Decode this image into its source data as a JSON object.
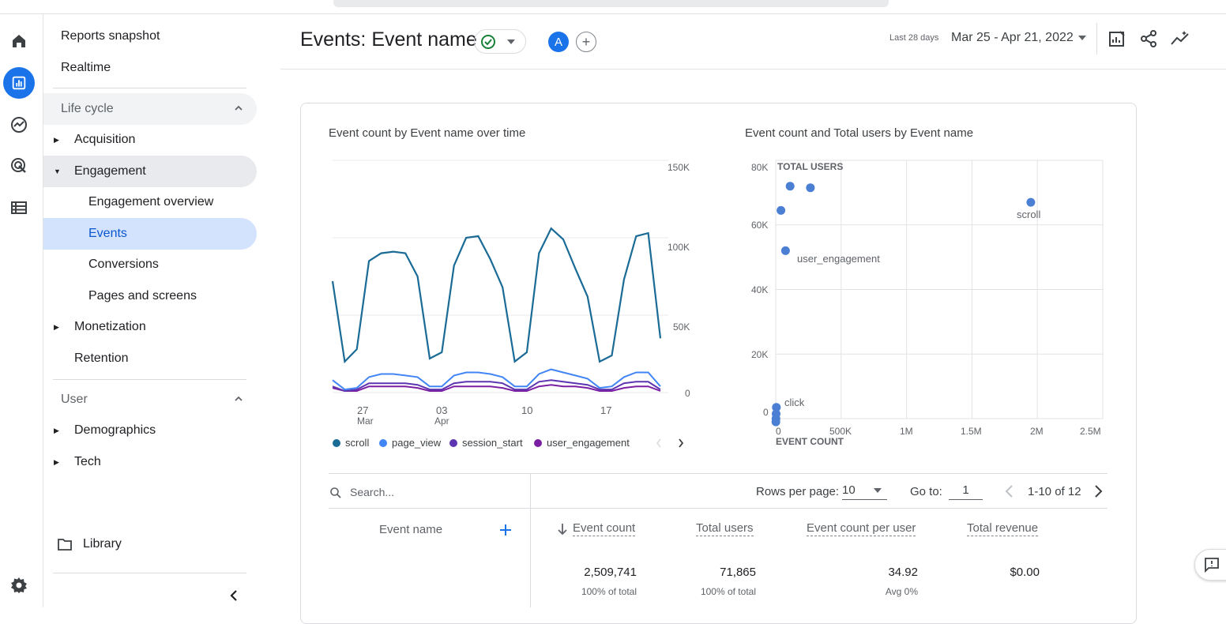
{
  "nav": {
    "reports_snapshot": "Reports snapshot",
    "realtime": "Realtime",
    "lifecycle": "Life cycle",
    "acquisition": "Acquisition",
    "engagement": "Engagement",
    "engagement_overview": "Engagement overview",
    "events": "Events",
    "conversions": "Conversions",
    "pages_and_screens": "Pages and screens",
    "monetization": "Monetization",
    "retention": "Retention",
    "user": "User",
    "demographics": "Demographics",
    "tech": "Tech",
    "library": "Library"
  },
  "header": {
    "title": "Events: Event name",
    "avatar_letter": "A",
    "date_label": "Last 28 days",
    "date_range": "Mar 25 - Apr 21, 2022"
  },
  "line_chart": {
    "title": "Event count by Event name over time",
    "y_ticks": [
      "150K",
      "100K",
      "50K",
      "0"
    ],
    "x_ticks": [
      {
        "day": "27",
        "month": "Mar"
      },
      {
        "day": "03",
        "month": "Apr"
      },
      {
        "day": "10",
        "month": ""
      },
      {
        "day": "17",
        "month": ""
      }
    ],
    "legend": [
      "scroll",
      "page_view",
      "session_start",
      "user_engagement"
    ]
  },
  "scatter_chart": {
    "title": "Event count and Total users by Event name",
    "y_axis_label": "TOTAL USERS",
    "x_axis_label": "EVENT COUNT",
    "y_ticks": [
      "80K",
      "60K",
      "40K",
      "20K",
      "0"
    ],
    "x_ticks": [
      "0",
      "500K",
      "1M",
      "1.5M",
      "2M",
      "2.5M"
    ],
    "labels": [
      "scroll",
      "user_engagement",
      "click"
    ]
  },
  "chart_data": [
    {
      "type": "line",
      "title": "Event count by Event name over time",
      "x": [
        "Mar 25",
        "Mar 26",
        "Mar 27",
        "Mar 28",
        "Mar 29",
        "Mar 30",
        "Mar 31",
        "Apr 1",
        "Apr 2",
        "Apr 3",
        "Apr 4",
        "Apr 5",
        "Apr 6",
        "Apr 7",
        "Apr 8",
        "Apr 9",
        "Apr 10",
        "Apr 11",
        "Apr 12",
        "Apr 13",
        "Apr 14",
        "Apr 15",
        "Apr 16",
        "Apr 17",
        "Apr 18",
        "Apr 19",
        "Apr 20",
        "Apr 21"
      ],
      "ylim": [
        0,
        150000
      ],
      "series": [
        {
          "name": "scroll",
          "color": "#1a6b96",
          "values": [
            72000,
            20000,
            28000,
            85000,
            90000,
            91000,
            90000,
            75000,
            22000,
            26000,
            82000,
            100000,
            101000,
            86000,
            68000,
            20000,
            26000,
            90000,
            106000,
            99000,
            80000,
            62000,
            20000,
            24000,
            73000,
            101000,
            103000,
            35000
          ]
        },
        {
          "name": "page_view",
          "color": "#4285f4",
          "values": [
            8000,
            2000,
            3000,
            10000,
            12000,
            12000,
            11000,
            10000,
            4000,
            4000,
            11000,
            13000,
            13000,
            12000,
            10000,
            4000,
            4000,
            12000,
            15000,
            13000,
            11000,
            9000,
            3000,
            4000,
            10000,
            13000,
            13000,
            4000
          ]
        },
        {
          "name": "session_start",
          "color": "#5e35b1",
          "values": [
            4000,
            1000,
            2000,
            6000,
            6000,
            6000,
            6000,
            5000,
            2000,
            2000,
            6000,
            7000,
            7000,
            7000,
            6000,
            2000,
            2000,
            7000,
            8000,
            7000,
            6000,
            5000,
            2000,
            2000,
            6000,
            7000,
            7000,
            2000
          ]
        },
        {
          "name": "user_engagement",
          "color": "#7b1fa2",
          "values": [
            3000,
            1000,
            1000,
            4000,
            4000,
            4000,
            4000,
            3000,
            1000,
            1000,
            4000,
            4000,
            4000,
            4000,
            3000,
            1000,
            1000,
            4000,
            5000,
            4000,
            4000,
            3000,
            1000,
            1000,
            3000,
            4000,
            4000,
            1000
          ]
        }
      ]
    },
    {
      "type": "scatter",
      "title": "Event count and Total users by Event name",
      "xlabel": "EVENT COUNT",
      "ylabel": "TOTAL USERS",
      "xlim": [
        0,
        2500000
      ],
      "ylim": [
        0,
        80000
      ],
      "points": [
        {
          "label": "scroll",
          "x": 1950000,
          "y": 67000
        },
        {
          "label": "",
          "x": 110000,
          "y": 72000
        },
        {
          "label": "",
          "x": 265000,
          "y": 71500
        },
        {
          "label": "",
          "x": 40000,
          "y": 64500
        },
        {
          "label": "user_engagement",
          "x": 75000,
          "y": 52000
        },
        {
          "label": "click",
          "x": 5000,
          "y": 3500
        },
        {
          "label": "",
          "x": 3000,
          "y": 1500
        },
        {
          "label": "",
          "x": 2000,
          "y": 0
        },
        {
          "label": "",
          "x": 1000,
          "y": -1000
        }
      ]
    }
  ],
  "table": {
    "search_placeholder": "Search...",
    "rows_per_page_label": "Rows per page:",
    "rows_per_page_value": "10",
    "go_to_label": "Go to:",
    "go_to_value": "1",
    "page_info": "1-10 of 12",
    "columns": {
      "event_name": "Event name",
      "event_count": "Event count",
      "total_users": "Total users",
      "event_count_per_user": "Event count per user",
      "total_revenue": "Total revenue"
    },
    "totals": {
      "event_count": "2,509,741",
      "event_count_sub": "100% of total",
      "total_users": "71,865",
      "total_users_sub": "100% of total",
      "per_user": "34.92",
      "per_user_sub": "Avg 0%",
      "revenue": "$0.00"
    }
  },
  "colors": {
    "accent": "#1a73e8",
    "active_nav_bg": "#d3e3fd",
    "scatter_point": "#4a7fd4"
  }
}
